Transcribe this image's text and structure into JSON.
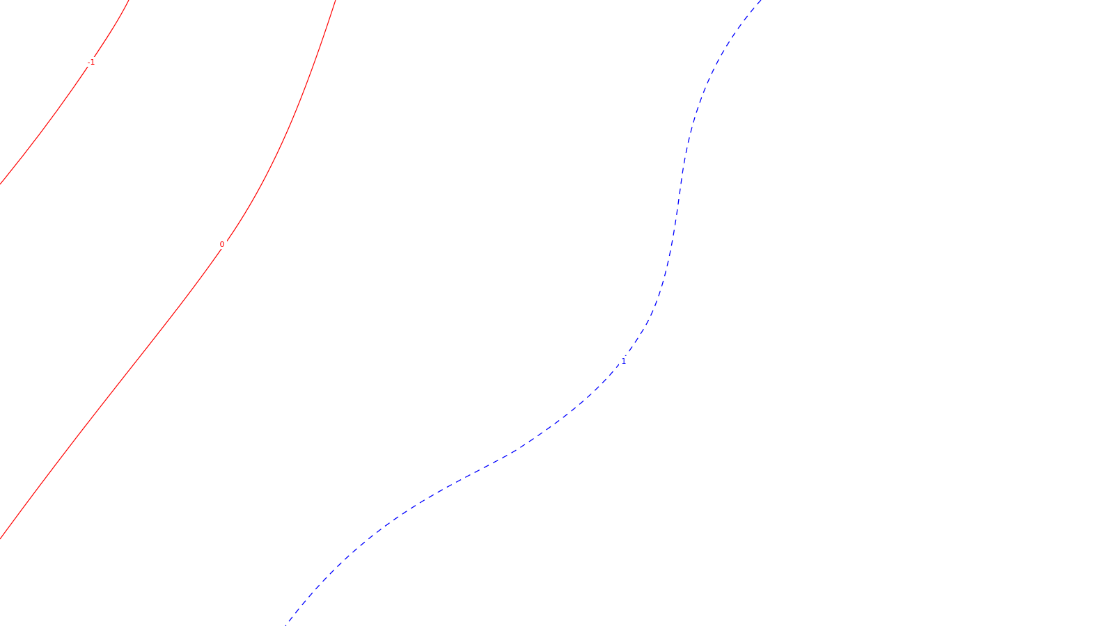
{
  "chart_data": {
    "type": "contour",
    "title": "",
    "xlabel": "",
    "ylabel": "",
    "axes_visible": false,
    "grid": false,
    "legend": "none",
    "levels": [
      {
        "level": -1,
        "label": "-1",
        "color": "#ff0000",
        "linestyle": "solid"
      },
      {
        "level": 0,
        "label": "0",
        "color": "#ff0000",
        "linestyle": "solid"
      },
      {
        "level": 1,
        "label": "1",
        "color": "#0000ff",
        "linestyle": "dashed"
      }
    ]
  }
}
